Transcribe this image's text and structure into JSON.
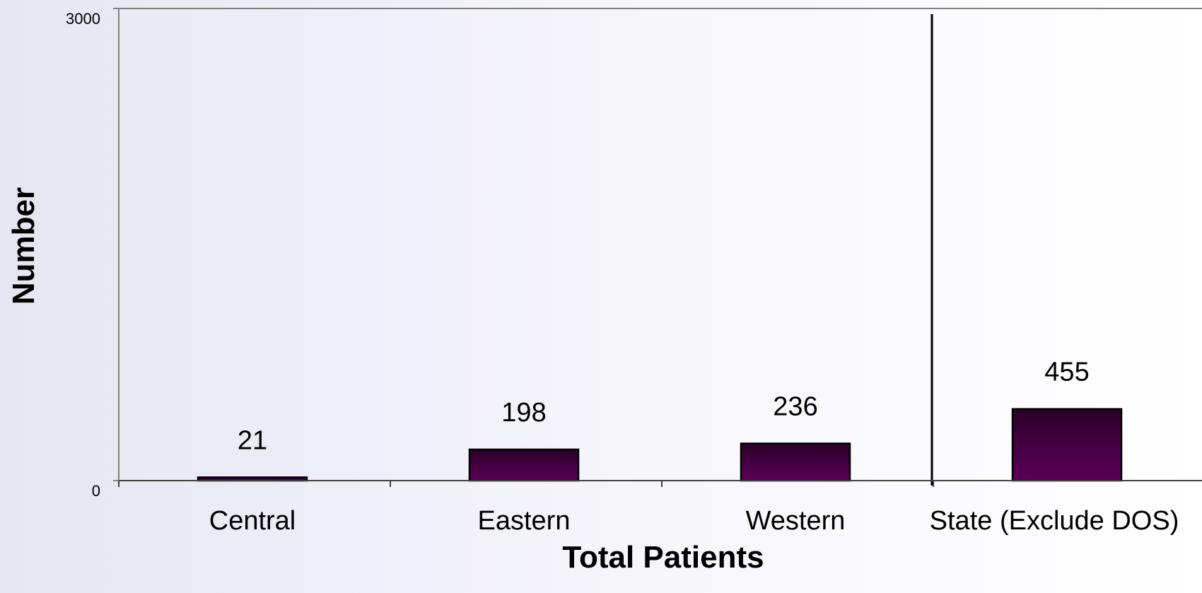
{
  "chart_data": {
    "type": "bar",
    "title": "",
    "xlabel": "Total Patients",
    "ylabel": "Number",
    "ylim": [
      0,
      3000
    ],
    "yticks": [
      "0",
      "3000"
    ],
    "categories": [
      "Central",
      "Eastern",
      "Western",
      "State (Exclude DOS)"
    ],
    "values": [
      21,
      198,
      236,
      455
    ],
    "value_labels": [
      "21",
      "198",
      "236",
      "455"
    ],
    "separator_after_category": 3,
    "grid": false,
    "legend": "none",
    "bar_color": "#5c0058",
    "bar_color_dark": "#2a0028"
  }
}
